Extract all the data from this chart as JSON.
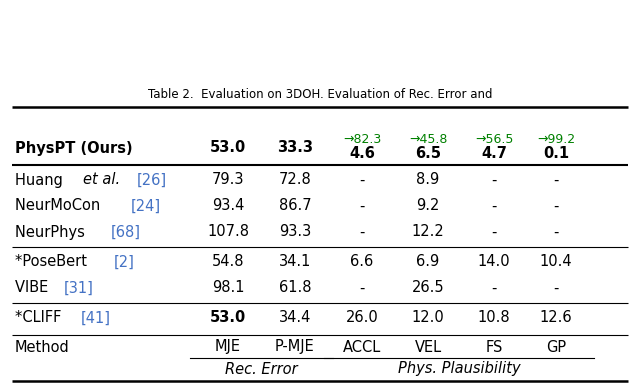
{
  "col_headers": [
    "Method",
    "MJE",
    "P-MJE",
    "ACCL",
    "VEL",
    "FS",
    "GP"
  ],
  "header_group1": "Rec. Error",
  "header_group2": "Phys. Plausibility",
  "rows": [
    {
      "method_parts": [
        [
          "*CLIFF ",
          "black"
        ],
        [
          "[41]",
          "#4472C4"
        ]
      ],
      "vals": [
        "53.0",
        "34.4",
        "26.0",
        "12.0",
        "10.8",
        "12.6"
      ],
      "bold": [
        true,
        false,
        false,
        false,
        false,
        false
      ],
      "sub": [
        "",
        "",
        "",
        "",
        "",
        ""
      ],
      "group": 0
    },
    {
      "method_parts": [
        [
          "VIBE ",
          "black"
        ],
        [
          "[31]",
          "#4472C4"
        ]
      ],
      "vals": [
        "98.1",
        "61.8",
        "-",
        "26.5",
        "-",
        "-"
      ],
      "bold": [
        false,
        false,
        false,
        false,
        false,
        false
      ],
      "sub": [
        "",
        "",
        "",
        "",
        "",
        ""
      ],
      "group": 1
    },
    {
      "method_parts": [
        [
          "*PoseBert ",
          "black"
        ],
        [
          "[2]",
          "#4472C4"
        ]
      ],
      "vals": [
        "54.8",
        "34.1",
        "6.6",
        "6.9",
        "14.0",
        "10.4"
      ],
      "bold": [
        false,
        false,
        false,
        false,
        false,
        false
      ],
      "sub": [
        "",
        "",
        "",
        "",
        "",
        ""
      ],
      "group": 1
    },
    {
      "method_parts": [
        [
          "NeurPhys ",
          "black"
        ],
        [
          "[68]",
          "#4472C4"
        ]
      ],
      "vals": [
        "107.8",
        "93.3",
        "-",
        "12.2",
        "-",
        "-"
      ],
      "bold": [
        false,
        false,
        false,
        false,
        false,
        false
      ],
      "sub": [
        "",
        "",
        "",
        "",
        "",
        ""
      ],
      "group": 2
    },
    {
      "method_parts": [
        [
          "NeurMoCon ",
          "black"
        ],
        [
          "[24]",
          "#4472C4"
        ]
      ],
      "vals": [
        "93.4",
        "86.7",
        "-",
        "9.2",
        "-",
        "-"
      ],
      "bold": [
        false,
        false,
        false,
        false,
        false,
        false
      ],
      "sub": [
        "",
        "",
        "",
        "",
        "",
        ""
      ],
      "group": 2
    },
    {
      "method_parts": [
        [
          "Huang ",
          "black"
        ],
        [
          "et al.",
          "black",
          "italic"
        ],
        [
          " ",
          "black"
        ],
        [
          "[26]",
          "#4472C4"
        ]
      ],
      "vals": [
        "79.3",
        "72.8",
        "-",
        "8.9",
        "-",
        "-"
      ],
      "bold": [
        false,
        false,
        false,
        false,
        false,
        false
      ],
      "sub": [
        "",
        "",
        "",
        "",
        "",
        ""
      ],
      "group": 2
    },
    {
      "method_parts": [
        [
          "PhysPT (Ours)",
          "black",
          "bold"
        ]
      ],
      "vals": [
        "53.0",
        "33.3",
        "4.6",
        "6.5",
        "4.7",
        "0.1"
      ],
      "bold": [
        true,
        true,
        true,
        true,
        true,
        true
      ],
      "sub": [
        "",
        "",
        "→82.3",
        "→45.8",
        "→56.5",
        "→99.2"
      ],
      "group": 3
    }
  ],
  "cite_color": "#4472C4",
  "green_color": "#008000",
  "bg_color": "#FFFFFF",
  "text_color": "#000000",
  "caption_text": "Table 2.  Evaluation on 3DOH. Evaluation of Rec. Error and"
}
